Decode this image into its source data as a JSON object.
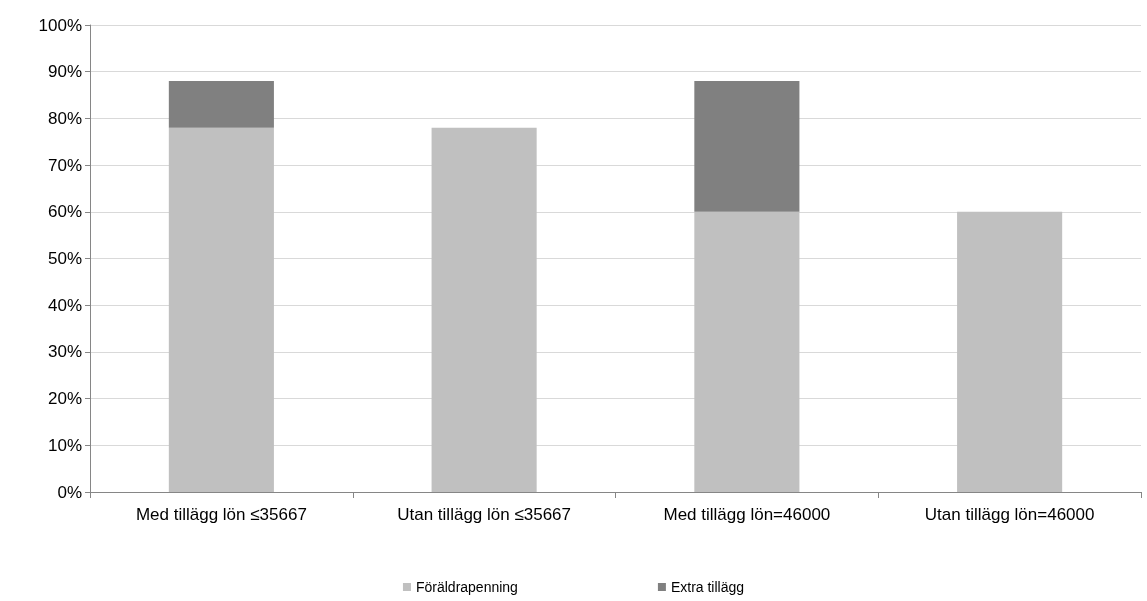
{
  "chart_data": {
    "type": "bar",
    "stacked": true,
    "categories": [
      "Med tillägg lön ≤35667",
      "Utan tillägg lön ≤35667",
      "Med tillägg lön=46000",
      "Utan tillägg lön=46000"
    ],
    "series": [
      {
        "name": "Föräldrapenning",
        "color": "#c0c0c0",
        "values": [
          78,
          78,
          60,
          60
        ]
      },
      {
        "name": "Extra tillägg",
        "color": "#808080",
        "values": [
          10,
          null,
          28,
          null
        ]
      }
    ],
    "ylim": [
      0,
      100
    ],
    "yticks": [
      {
        "value": 0,
        "label": "0%"
      },
      {
        "value": 10,
        "label": "10%"
      },
      {
        "value": 20,
        "label": "20%"
      },
      {
        "value": 30,
        "label": "30%"
      },
      {
        "value": 40,
        "label": "40%"
      },
      {
        "value": 50,
        "label": "50%"
      },
      {
        "value": 60,
        "label": "60%"
      },
      {
        "value": 70,
        "label": "70%"
      },
      {
        "value": 80,
        "label": "80%"
      },
      {
        "value": 90,
        "label": "90%"
      },
      {
        "value": 100,
        "label": "100%"
      }
    ],
    "grid": "y",
    "legend": "bottom"
  }
}
